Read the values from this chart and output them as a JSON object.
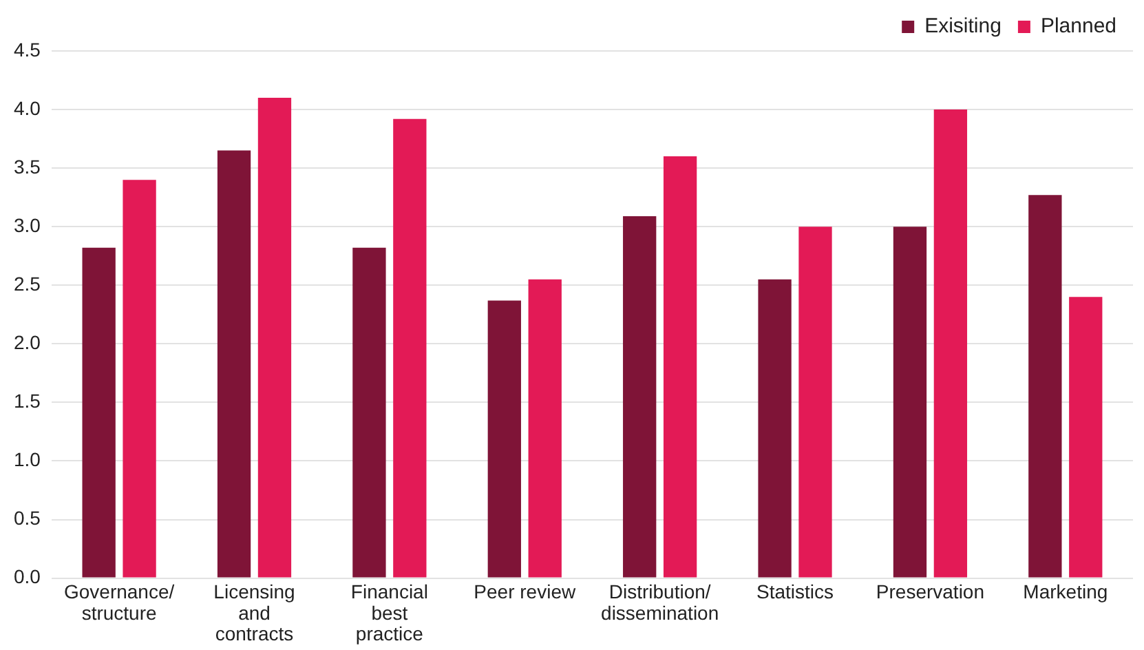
{
  "chart_data": {
    "type": "bar",
    "categories": [
      "Governance/\nstructure",
      "Licensing\nand\ncontracts",
      "Financial\nbest\npractice",
      "Peer review",
      "Distribution/\ndissemination",
      "Statistics",
      "Preservation",
      "Marketing"
    ],
    "series": [
      {
        "name": "Exisiting",
        "color": "#7f1437",
        "values": [
          2.82,
          3.65,
          2.82,
          2.37,
          3.09,
          2.55,
          3.0,
          3.27
        ]
      },
      {
        "name": "Planned",
        "color": "#e31a56",
        "values": [
          3.4,
          4.1,
          3.92,
          2.55,
          3.6,
          3.0,
          4.0,
          2.4
        ]
      }
    ],
    "ylim": [
      0,
      4.5
    ],
    "yticks": [
      {
        "value": 0,
        "label": "0.0"
      },
      {
        "value": 0.5,
        "label": "0.5"
      },
      {
        "value": 1,
        "label": "1.0"
      },
      {
        "value": 1.5,
        "label": "1.5"
      },
      {
        "value": 2,
        "label": "2.0"
      },
      {
        "value": 2.5,
        "label": "2.5"
      },
      {
        "value": 3,
        "label": "3.0"
      },
      {
        "value": 3.5,
        "label": "3.5"
      },
      {
        "value": 4,
        "label": "4.0"
      },
      {
        "value": 4.5,
        "label": "4.5"
      }
    ],
    "grid": "y",
    "legend": "top right"
  }
}
